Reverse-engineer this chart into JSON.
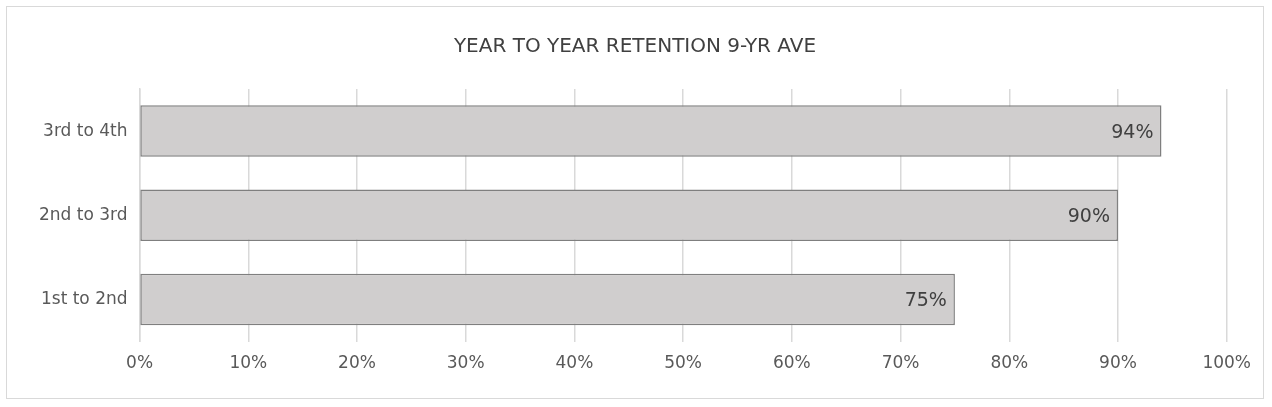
{
  "chart_data": {
    "type": "bar",
    "orientation": "horizontal",
    "title": "YEAR TO YEAR RETENTION 9-YR AVE",
    "categories": [
      "3rd to 4th",
      "2nd to 3rd",
      "1st to 2nd"
    ],
    "values": [
      94,
      90,
      75
    ],
    "value_labels": [
      "94%",
      "90%",
      "75%"
    ],
    "color": "#d0cece",
    "xlim": [
      0,
      100
    ],
    "xticks": [
      {
        "value": 0,
        "label": "0%"
      },
      {
        "value": 10,
        "label": "10%"
      },
      {
        "value": 20,
        "label": "20%"
      },
      {
        "value": 30,
        "label": "30%"
      },
      {
        "value": 40,
        "label": "40%"
      },
      {
        "value": 50,
        "label": "50%"
      },
      {
        "value": 60,
        "label": "60%"
      },
      {
        "value": 70,
        "label": "70%"
      },
      {
        "value": 80,
        "label": "80%"
      },
      {
        "value": 90,
        "label": "90%"
      },
      {
        "value": 100,
        "label": "100%"
      }
    ],
    "grid": "x"
  }
}
